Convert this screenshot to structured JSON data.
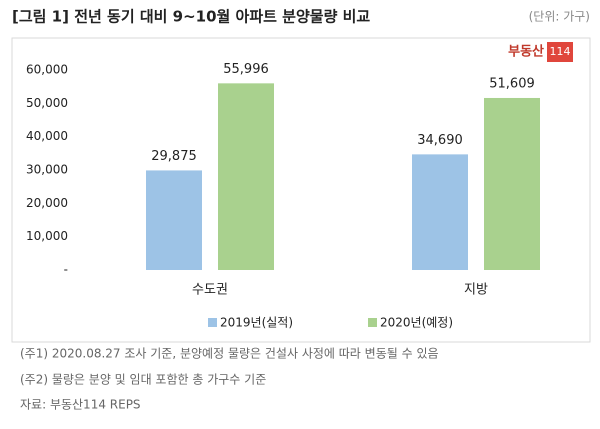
{
  "chart_data": {
    "type": "bar",
    "title": "[그림 1] 전년 동기 대비 9~10월 아파트 분양물량 비교",
    "unit": "(단위: 가구)",
    "logo": [
      "부동산",
      "114"
    ],
    "categories": [
      "수도권",
      "지방"
    ],
    "series": [
      {
        "name": "2019년(실적)",
        "color": "#9dc3e6",
        "values": [
          29875,
          34690
        ],
        "value_labels": [
          "29,875",
          "34,690"
        ]
      },
      {
        "name": "2020년(예정)",
        "color": "#a9d18e",
        "values": [
          55996,
          51609
        ],
        "value_labels": [
          "55,996",
          "51,609"
        ]
      }
    ],
    "ylim": [
      0,
      60000
    ],
    "yticks": [
      {
        "value": 0,
        "label": "-"
      },
      {
        "value": 10000,
        "label": "10,000"
      },
      {
        "value": 20000,
        "label": "20,000"
      },
      {
        "value": 30000,
        "label": "30,000"
      },
      {
        "value": 40000,
        "label": "40,000"
      },
      {
        "value": 50000,
        "label": "50,000"
      },
      {
        "value": 60000,
        "label": "60,000"
      }
    ],
    "grid": false,
    "legend": "bottom",
    "notes": [
      "(주1) 2020.08.27 조사 기준, 분양예정 물량은 건설사 사정에 따라 변동될 수 있음",
      "(주2) 물량은 분양 및 임대 포함한 총 가구수 기준",
      "자료: 부동산114 REPS"
    ]
  }
}
